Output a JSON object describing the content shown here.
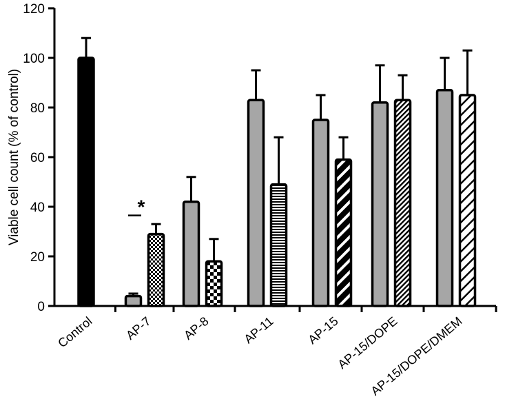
{
  "chart_data": {
    "type": "bar",
    "ylabel": "Viable cell count (% of control)",
    "xlabel": "",
    "ylim": [
      0,
      120
    ],
    "yticks": [
      0,
      20,
      40,
      60,
      80,
      100,
      120
    ],
    "grid": false,
    "categories": [
      "Control",
      "AP-7",
      "AP-8",
      "AP-11",
      "AP-15",
      "AP-15/DOPE",
      "AP-15/DOPE/DMEM"
    ],
    "groups": [
      {
        "category": "Control",
        "bars": [
          {
            "value": 100,
            "error": 8,
            "fill": "solid-black"
          }
        ]
      },
      {
        "category": "AP-7",
        "bars": [
          {
            "value": 4,
            "error": 1,
            "fill": "gray"
          },
          {
            "value": 29,
            "error": 4,
            "fill": "checker-fine"
          }
        ]
      },
      {
        "category": "AP-8",
        "bars": [
          {
            "value": 42,
            "error": 10,
            "fill": "gray"
          },
          {
            "value": 18,
            "error": 9,
            "fill": "checker-coarse"
          }
        ]
      },
      {
        "category": "AP-11",
        "bars": [
          {
            "value": 83,
            "error": 12,
            "fill": "gray"
          },
          {
            "value": 49,
            "error": 19,
            "fill": "horizontal-lines"
          }
        ]
      },
      {
        "category": "AP-15",
        "bars": [
          {
            "value": 75,
            "error": 10,
            "fill": "gray"
          },
          {
            "value": 59,
            "error": 9,
            "fill": "thick-diagonal"
          }
        ]
      },
      {
        "category": "AP-15/DOPE",
        "bars": [
          {
            "value": 82,
            "error": 15,
            "fill": "gray"
          },
          {
            "value": 83,
            "error": 10,
            "fill": "dense-diagonal"
          }
        ]
      },
      {
        "category": "AP-15/DOPE/DMEM",
        "bars": [
          {
            "value": 87,
            "error": 13,
            "fill": "gray"
          },
          {
            "value": 85,
            "error": 18,
            "fill": "sparse-diagonal"
          }
        ]
      }
    ],
    "annotations": [
      {
        "text": "*",
        "category": "AP-7"
      }
    ]
  },
  "colors": {
    "gray": "#a6a6a6",
    "black": "#000000",
    "white": "#ffffff"
  }
}
